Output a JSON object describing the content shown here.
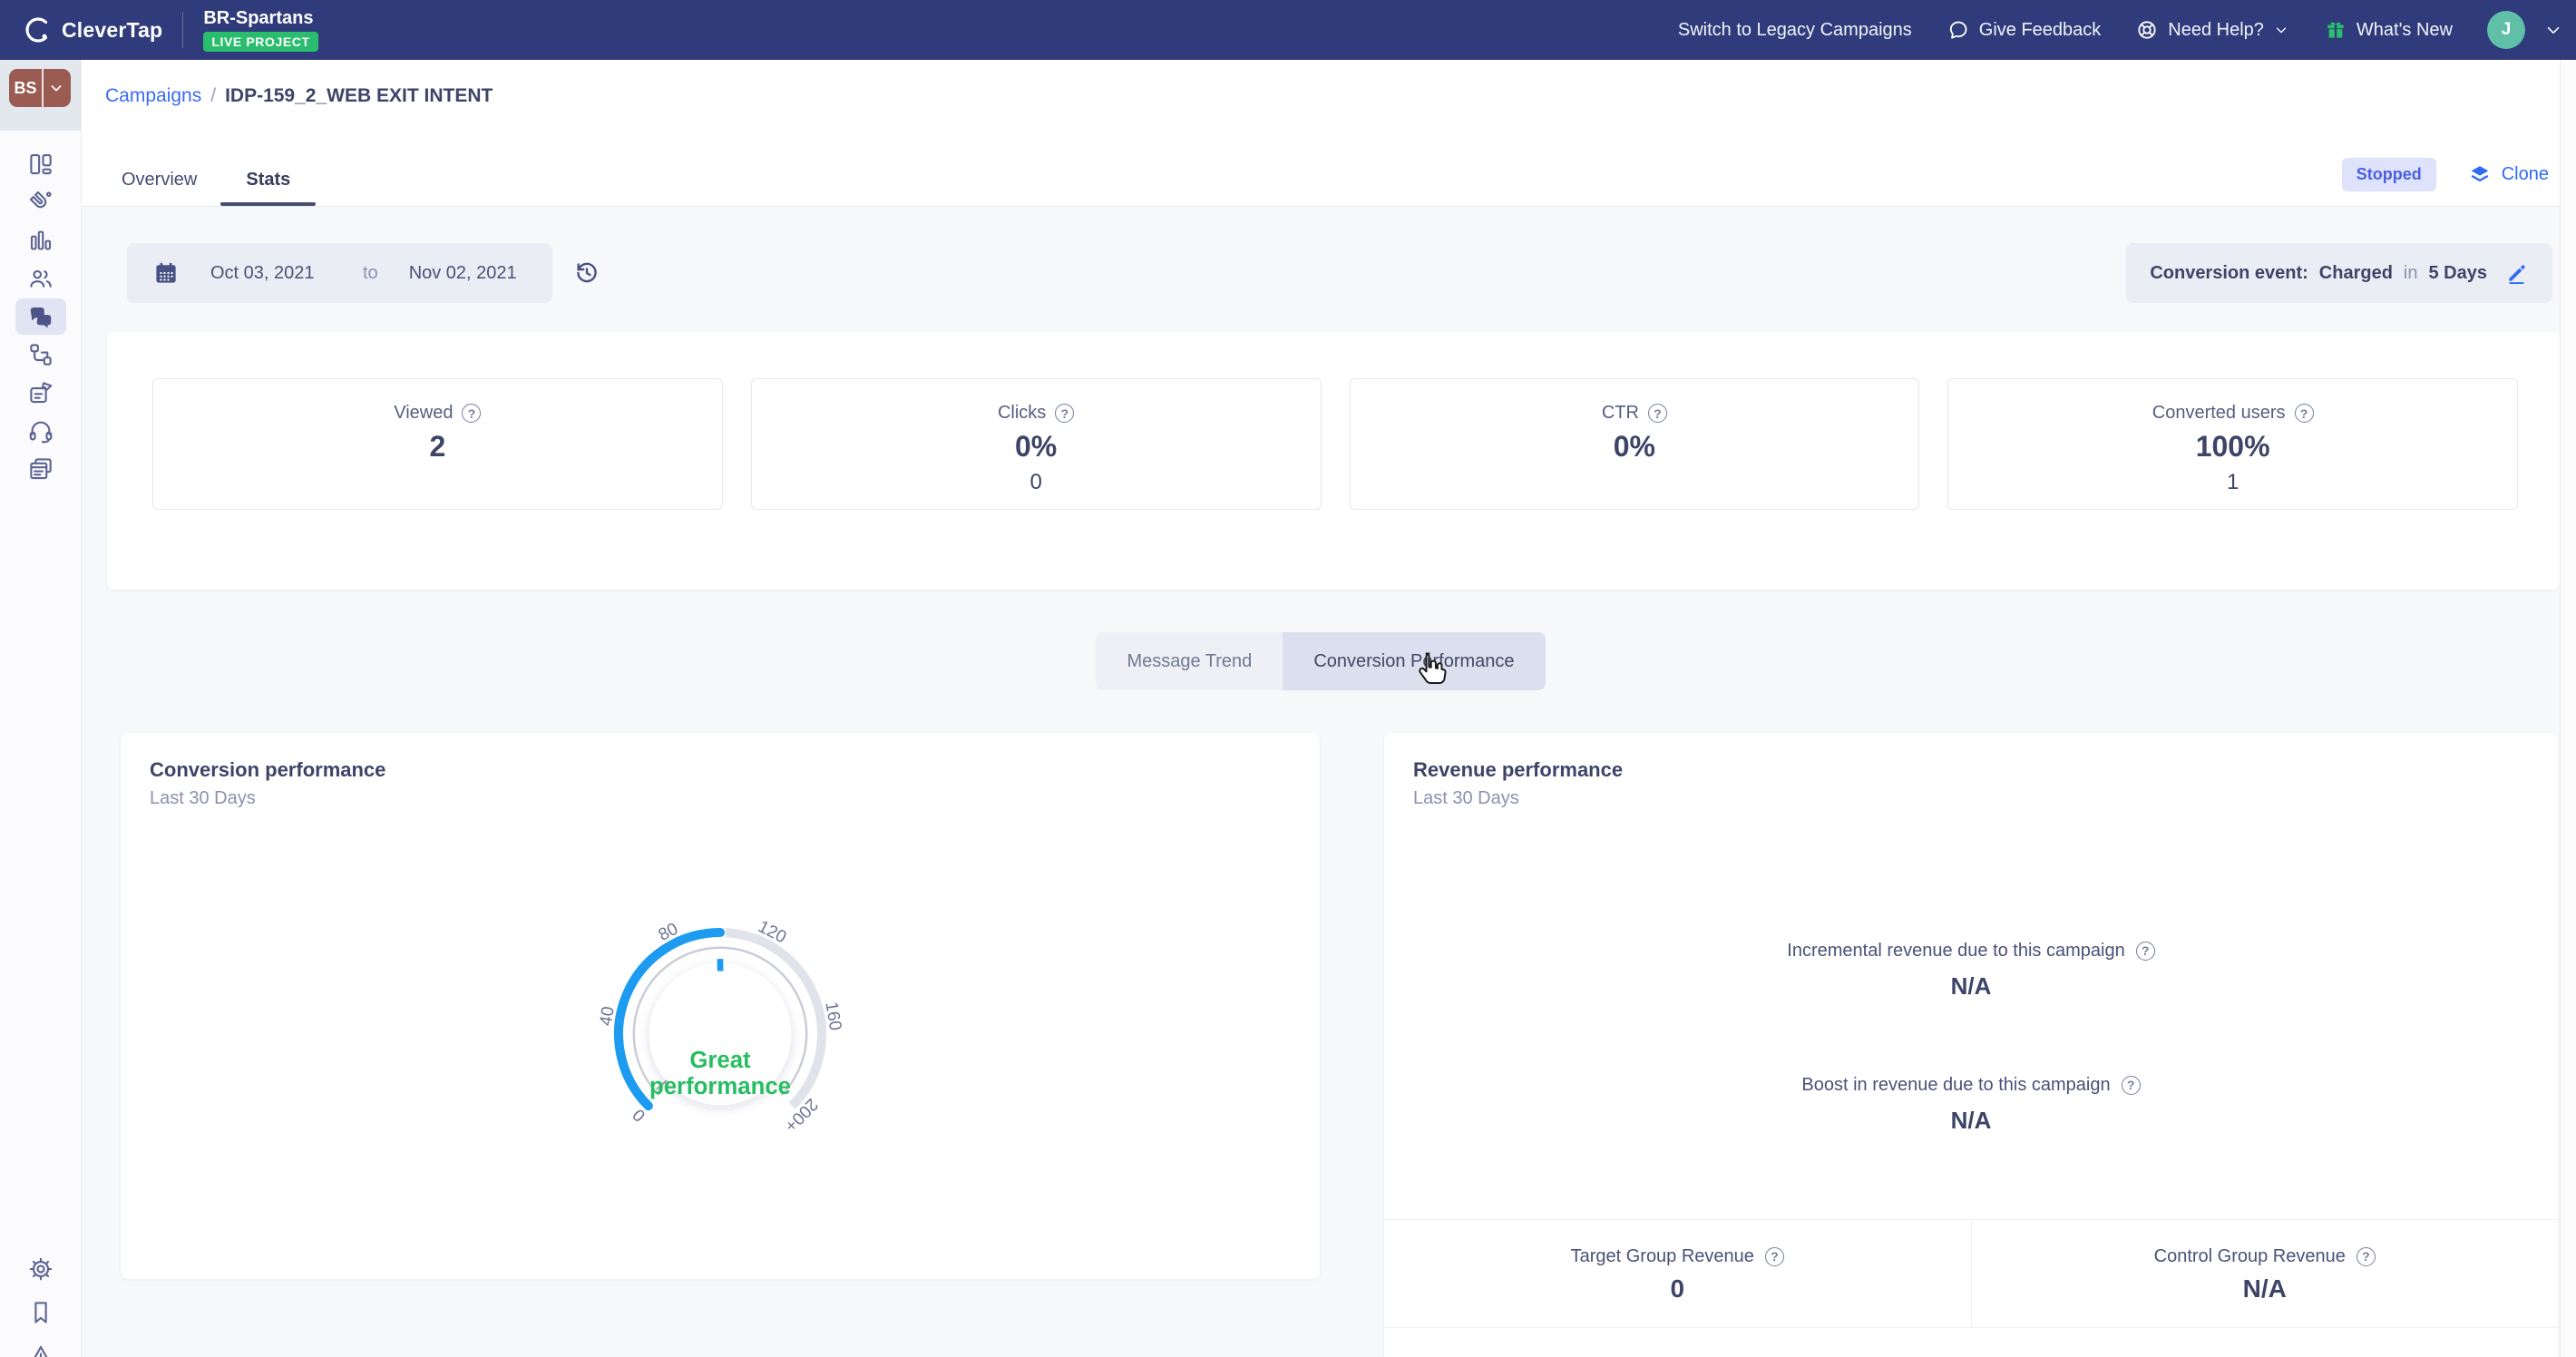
{
  "topbar": {
    "logo_text": "CleverTap",
    "project_name": "BR-Spartans",
    "project_badge": "LIVE PROJECT",
    "switch_legacy": "Switch to Legacy Campaigns",
    "give_feedback": "Give Feedback",
    "need_help": "Need Help?",
    "whats_new": "What's New",
    "avatar_initial": "J"
  },
  "sidebar": {
    "account_initials": "BS"
  },
  "breadcrumb": {
    "parent": "Campaigns",
    "separator": "/",
    "current": "IDP-159_2_WEB EXIT INTENT"
  },
  "tabs": {
    "overview": "Overview",
    "stats": "Stats"
  },
  "actions": {
    "status_badge": "Stopped",
    "clone_label": "Clone"
  },
  "filters": {
    "date_from": "Oct 03, 2021",
    "to_word": "to",
    "date_to": "Nov 02, 2021",
    "conversion_label": "Conversion event:",
    "conversion_event": "Charged",
    "in_word": "in",
    "conversion_window": "5 Days"
  },
  "stats_cards": [
    {
      "label": "Viewed",
      "value": "2",
      "sub": ""
    },
    {
      "label": "Clicks",
      "value": "0%",
      "sub": "0"
    },
    {
      "label": "CTR",
      "value": "0%",
      "sub": ""
    },
    {
      "label": "Converted users",
      "value": "100%",
      "sub": "1"
    }
  ],
  "view_toggle": {
    "message_trend": "Message Trend",
    "conversion_performance": "Conversion Performance"
  },
  "conversion_panel": {
    "title": "Conversion performance",
    "subtitle": "Last 30 Days"
  },
  "revenue_panel": {
    "title": "Revenue performance",
    "subtitle": "Last 30 Days",
    "incremental_label": "Incremental revenue due to this campaign",
    "incremental_value": "N/A",
    "boost_label": "Boost in revenue due to this campaign",
    "boost_value": "N/A",
    "target_label": "Target Group Revenue",
    "target_value": "0",
    "control_label": "Control Group Revenue",
    "control_value": "N/A"
  },
  "chart_data": {
    "type": "gauge",
    "title": "Conversion performance",
    "subtitle": "Last 30 Days",
    "min": 0,
    "max": 200,
    "start_angle": -135,
    "end_angle": 135,
    "tick_labels": [
      "0",
      "40",
      "80",
      "120",
      "160",
      "200+"
    ],
    "value": 100,
    "status_lines": [
      "Great",
      "performance"
    ],
    "colors": {
      "progress": "#1d9bf0",
      "track": "#e0e3ea",
      "inner_ring": "#c9ccd6",
      "needle": "#a9adb8",
      "status": "#27bd61",
      "tick": "#6e7493"
    }
  }
}
